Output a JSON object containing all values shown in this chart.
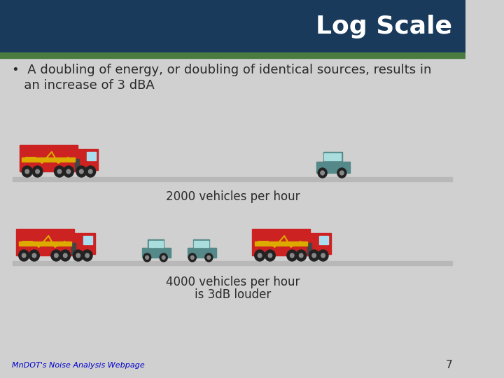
{
  "title": "Log Scale",
  "title_color": "#ffffff",
  "title_bg_color": "#1a3a5c",
  "header_stripe_color": "#4a7c3f",
  "body_bg_color": "#d0d0d0",
  "bullet_text_line1": "•  A doubling of energy, or doubling of identical sources, results in",
  "bullet_text_line2": "   an increase of 3 dBA",
  "label_2000": "2000 vehicles per hour",
  "label_4000_line1": "4000 vehicles per hour",
  "label_4000_line2": "is 3dB louder",
  "footer_link": "MnDOT's Noise Analysis Webpage",
  "page_number": "7",
  "text_color": "#2a2a2a",
  "footer_link_color": "#0000cc",
  "road_color": "#b8b8b8",
  "truck_red": "#cc2222",
  "truck_yellow": "#ddaa00",
  "truck_dark": "#444444",
  "car_teal": "#558888",
  "wheel_color": "#222222"
}
